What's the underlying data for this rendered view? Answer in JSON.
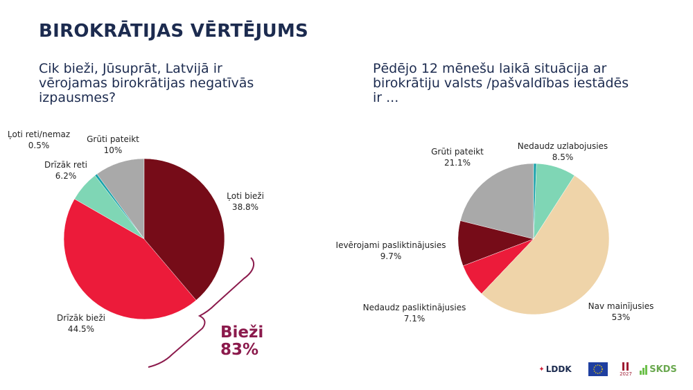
{
  "page": {
    "title": "BIROKRĀTIJAS VĒRTĒJUMS"
  },
  "bracket": {
    "label_line1": "Bieži",
    "label_line2": "83%",
    "color": "#8b1a4c"
  },
  "chart_data": [
    {
      "type": "pie",
      "title": "Cik bieži, Jūsuprāt, Latvijā ir\nvērojamas birokrātijas negatīvās\nizpausmes?",
      "slices": [
        {
          "label": "Ļoti bieži",
          "value": 38.8,
          "display": "38.8%",
          "color": "#760c18"
        },
        {
          "label": "Drīzāk bieži",
          "value": 44.5,
          "display": "44.5%",
          "color": "#ec1b3a"
        },
        {
          "label": "Drīzāk reti",
          "value": 6.2,
          "display": "6.2%",
          "color": "#7fd6b5"
        },
        {
          "label": "Ļoti reti/nemaz",
          "value": 0.5,
          "display": "0.5%",
          "color": "#1aa3ab"
        },
        {
          "label": "Grūti pateikt",
          "value": 10,
          "display": "10%",
          "color": "#a9a9a9"
        }
      ]
    },
    {
      "type": "pie",
      "title": "Pēdējo 12 mēnešu laikā situācija ar\nbirokrātiju valsts /pašvaldības iestādēs\nir ...",
      "slices": [
        {
          "label": "",
          "value": 0.6,
          "display": "",
          "color": "#1aa3ab"
        },
        {
          "label": "Nedaudz uzlabojusies",
          "value": 8.5,
          "display": "8.5%",
          "color": "#7fd6b5"
        },
        {
          "label": "Nav mainījusies",
          "value": 53,
          "display": "53%",
          "color": "#efd4a9"
        },
        {
          "label": "Nedaudz pasliktinājusies",
          "value": 7.1,
          "display": "7.1%",
          "color": "#ec1b3a"
        },
        {
          "label": "Ievērojami pasliktinājusies",
          "value": 9.7,
          "display": "9.7%",
          "color": "#760c18"
        },
        {
          "label": "Grūti pateikt",
          "value": 21.1,
          "display": "21.1%",
          "color": "#a9a9a9"
        }
      ]
    }
  ],
  "logos": {
    "lddk": "LDDK",
    "skds": "SKDS",
    "year": "2027"
  }
}
